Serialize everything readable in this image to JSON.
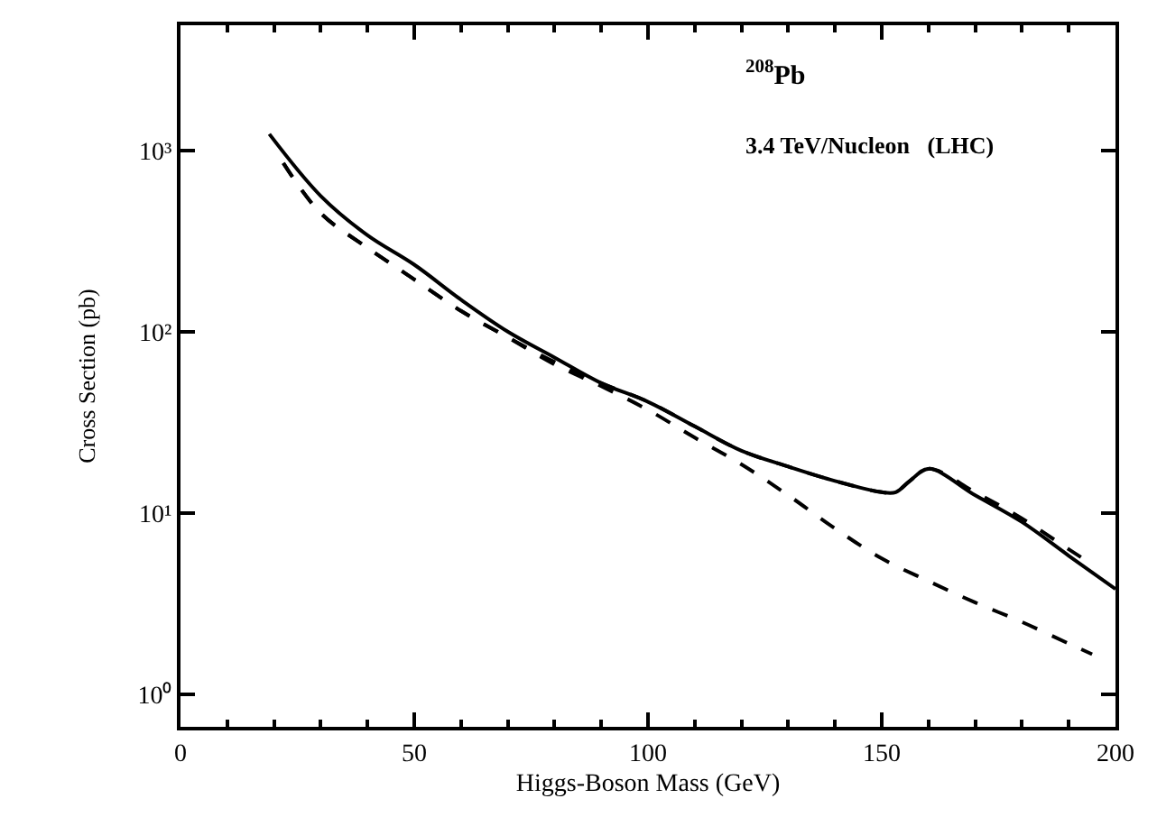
{
  "chart_data": {
    "type": "line",
    "xlabel": "Higgs-Boson Mass (GeV)",
    "ylabel": "Cross Section (pb)",
    "log": "y",
    "marker": "none",
    "annotations": [
      "$^{208}$Pb",
      "3.4 TeV/Nucleon   (LHC)"
    ],
    "xlim": [
      0,
      200
    ],
    "xticks": [
      0,
      50,
      100,
      150,
      200
    ],
    "ylim": [
      0.66,
      4900
    ],
    "yticks": [
      {
        "value": 1,
        "label": "10⁰"
      },
      {
        "value": 10,
        "label": "10¹"
      },
      {
        "value": 100,
        "label": "10²"
      },
      {
        "value": 1000,
        "label": "10³"
      }
    ],
    "series": [
      {
        "color": "#000000",
        "line_style": "solid",
        "x": [
          19,
          30,
          40,
          50,
          60,
          70,
          80,
          90,
          100,
          110,
          120,
          130,
          140,
          150,
          153,
          156,
          160,
          170,
          180,
          190,
          200
        ],
        "values": [
          1230,
          560,
          340,
          234,
          150,
          100,
          72,
          52,
          41,
          30,
          22,
          18,
          15,
          13,
          13,
          15,
          17.5,
          12.5,
          8.9,
          5.8,
          3.8
        ]
      },
      {
        "color": "#000000",
        "line_style": "dashed",
        "x": [
          22,
          30,
          40,
          50,
          60,
          70,
          80,
          90,
          100,
          110,
          120,
          130,
          140,
          150,
          153,
          156,
          160,
          170,
          180,
          190,
          195
        ],
        "values": [
          850,
          450,
          290,
          194,
          130,
          93,
          68,
          52,
          41,
          30,
          22,
          18,
          15,
          13,
          13,
          15,
          17.5,
          13,
          9.3,
          6.3,
          5.2
        ]
      },
      {
        "color": "#000000",
        "line_style": "dashed",
        "x": [
          22,
          30,
          40,
          50,
          60,
          70,
          80,
          90,
          100,
          110,
          120,
          130,
          140,
          150,
          160,
          170,
          180,
          190,
          195
        ],
        "values": [
          850,
          450,
          290,
          194,
          130,
          93,
          66,
          50,
          37,
          26,
          18.5,
          12.5,
          8.2,
          5.6,
          4.2,
          3.2,
          2.5,
          1.9,
          1.66
        ]
      }
    ]
  }
}
